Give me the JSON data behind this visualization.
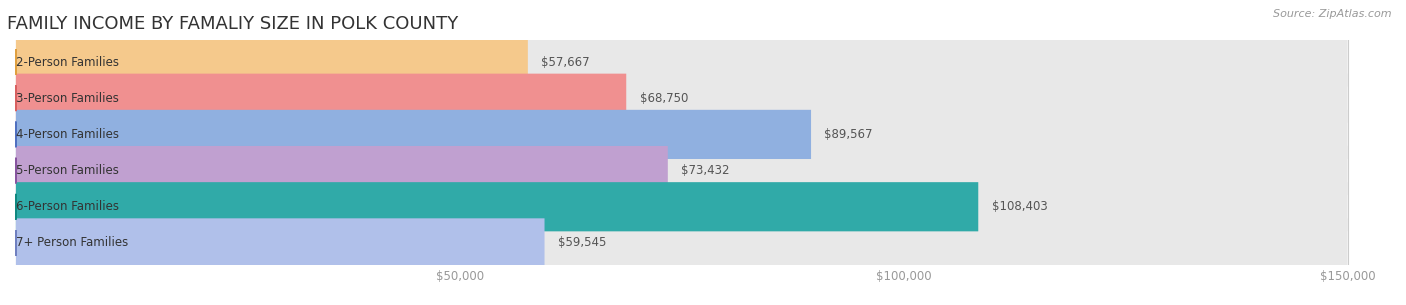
{
  "title": "FAMILY INCOME BY FAMALIY SIZE IN POLK COUNTY",
  "source": "Source: ZipAtlas.com",
  "categories": [
    "2-Person Families",
    "3-Person Families",
    "4-Person Families",
    "5-Person Families",
    "6-Person Families",
    "7+ Person Families"
  ],
  "values": [
    57667,
    68750,
    89567,
    73432,
    108403,
    59545
  ],
  "bar_colors": [
    "#f5c98c",
    "#f09090",
    "#90b0e0",
    "#c0a0d0",
    "#30aaa8",
    "#b0c0ea"
  ],
  "dot_colors": [
    "#e0a040",
    "#d86060",
    "#5070c0",
    "#8855a0",
    "#108880",
    "#7080c0"
  ],
  "bar_bg_color": "#e8e8e8",
  "labels": [
    "$57,667",
    "$68,750",
    "$89,567",
    "$73,432",
    "$108,403",
    "$59,545"
  ],
  "xmax": 150000,
  "xticks": [
    50000,
    100000,
    150000
  ],
  "xticklabels": [
    "$50,000",
    "$100,000",
    "$150,000"
  ],
  "fig_bg_color": "#ffffff",
  "title_fontsize": 13,
  "label_fontsize": 8.5,
  "source_fontsize": 8
}
